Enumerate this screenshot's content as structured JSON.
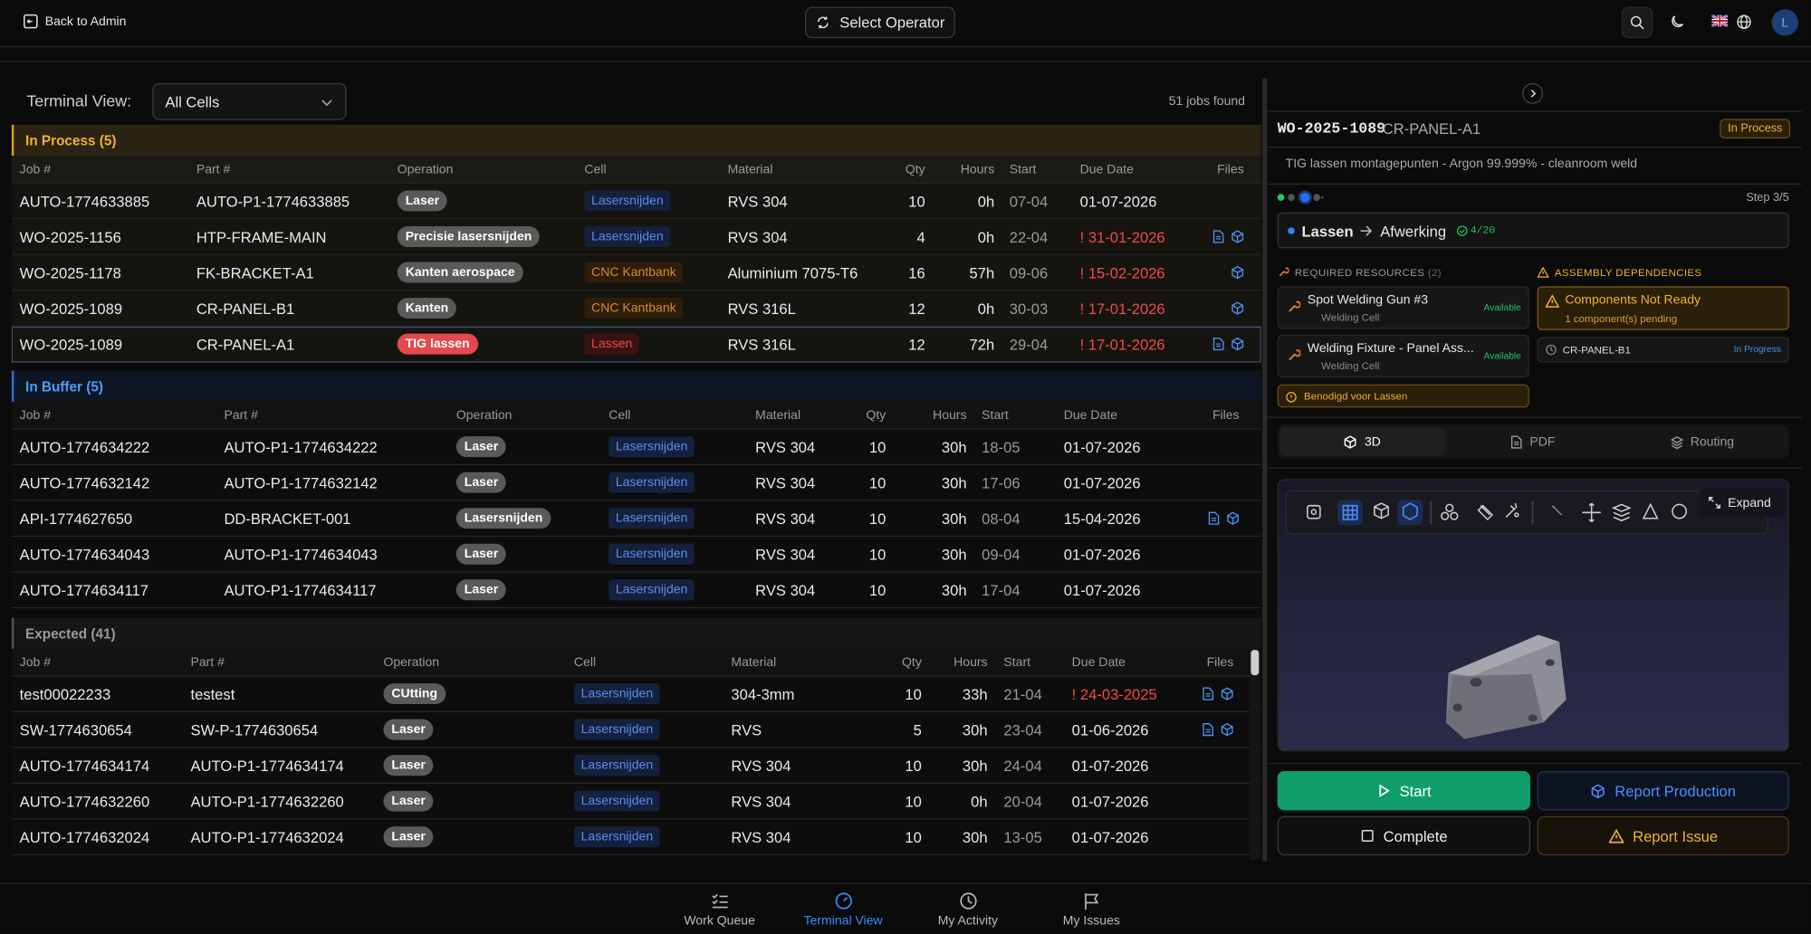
{
  "header": {
    "back": "Back to Admin",
    "select_operator": "Select Operator",
    "avatar": "L"
  },
  "toolbar": {
    "label": "Terminal View:",
    "cell_filter": "All Cells",
    "jobs_found": "51 jobs found"
  },
  "groups": [
    {
      "title": "In Process (5)",
      "tone": "amber",
      "columns": [
        "Job #",
        "Part #",
        "Operation",
        "Cell",
        "Material",
        "Qty",
        "Hours",
        "Start",
        "Due Date",
        "Files"
      ],
      "rows": [
        {
          "job": "AUTO-1774633885",
          "part": "AUTO-P1-1774633885",
          "operation": "Laser",
          "cell": "Lasersnijden",
          "cell_color": "blue",
          "material": "RVS 304",
          "qty": 10,
          "hours": "0h",
          "start": "07-04",
          "due": "01-07-2026",
          "files": []
        },
        {
          "job": "WO-2025-1156",
          "part": "HTP-FRAME-MAIN",
          "operation": "Precisie lasersnijden",
          "cell": "Lasersnijden",
          "cell_color": "blue",
          "material": "RVS 304",
          "qty": 4,
          "hours": "0h",
          "start": "22-04",
          "due": "! 31-01-2026",
          "overdue": true,
          "files": [
            "doc",
            "cube"
          ]
        },
        {
          "job": "WO-2025-1178",
          "part": "FK-BRACKET-A1",
          "operation": "Kanten aerospace",
          "cell": "CNC Kantbank",
          "cell_color": "orange",
          "material": "Aluminium 7075-T6",
          "qty": 16,
          "hours": "57h",
          "start": "09-06",
          "due": "! 15-02-2026",
          "overdue": true,
          "files": [
            "cube"
          ]
        },
        {
          "job": "WO-2025-1089",
          "part": "CR-PANEL-B1",
          "operation": "Kanten",
          "cell": "CNC Kantbank",
          "cell_color": "orange",
          "material": "RVS 316L",
          "qty": 12,
          "hours": "0h",
          "start": "30-03",
          "due": "! 17-01-2026",
          "overdue": true,
          "files": [
            "cube"
          ]
        },
        {
          "job": "WO-2025-1089",
          "part": "CR-PANEL-A1",
          "operation": "TIG lassen",
          "operation_color": "red",
          "cell": "Lassen",
          "cell_color": "red",
          "material": "RVS 316L",
          "qty": 12,
          "hours": "72h",
          "start": "29-04",
          "due": "! 17-01-2026",
          "overdue": true,
          "files": [
            "doc",
            "cube"
          ],
          "selected": true
        }
      ]
    },
    {
      "title": "In Buffer (5)",
      "tone": "blue",
      "columns": [
        "Job #",
        "Part #",
        "Operation",
        "Cell",
        "Material",
        "Qty",
        "Hours",
        "Start",
        "Due Date",
        "Files"
      ],
      "rows": [
        {
          "job": "AUTO-1774634222",
          "part": "AUTO-P1-1774634222",
          "operation": "Laser",
          "cell": "Lasersnijden",
          "cell_color": "blue",
          "material": "RVS 304",
          "qty": 10,
          "hours": "30h",
          "start": "18-05",
          "due": "01-07-2026",
          "files": []
        },
        {
          "job": "AUTO-1774632142",
          "part": "AUTO-P1-1774632142",
          "operation": "Laser",
          "cell": "Lasersnijden",
          "cell_color": "blue",
          "material": "RVS 304",
          "qty": 10,
          "hours": "30h",
          "start": "17-06",
          "due": "01-07-2026",
          "files": []
        },
        {
          "job": "API-1774627650",
          "part": "DD-BRACKET-001",
          "operation": "Lasersnijden",
          "cell": "Lasersnijden",
          "cell_color": "blue",
          "material": "RVS 304",
          "qty": 10,
          "hours": "30h",
          "start": "08-04",
          "due": "15-04-2026",
          "files": [
            "doc",
            "cube"
          ]
        },
        {
          "job": "AUTO-1774634043",
          "part": "AUTO-P1-1774634043",
          "operation": "Laser",
          "cell": "Lasersnijden",
          "cell_color": "blue",
          "material": "RVS 304",
          "qty": 10,
          "hours": "30h",
          "start": "09-04",
          "due": "01-07-2026",
          "files": []
        },
        {
          "job": "AUTO-1774634117",
          "part": "AUTO-P1-1774634117",
          "operation": "Laser",
          "cell": "Lasersnijden",
          "cell_color": "blue",
          "material": "RVS 304",
          "qty": 10,
          "hours": "30h",
          "start": "17-04",
          "due": "01-07-2026",
          "files": []
        }
      ]
    },
    {
      "title": "Expected (41)",
      "tone": "gray",
      "columns": [
        "Job #",
        "Part #",
        "Operation",
        "Cell",
        "Material",
        "Qty",
        "Hours",
        "Start",
        "Due Date",
        "Files"
      ],
      "rows": [
        {
          "job": "test00022233",
          "part": "testest",
          "operation": "CUtting",
          "cell": "Lasersnijden",
          "cell_color": "blue",
          "material": "304-3mm",
          "qty": 10,
          "hours": "33h",
          "start": "21-04",
          "due": "! 24-03-2025",
          "overdue": true,
          "files": [
            "doc",
            "cube"
          ]
        },
        {
          "job": "SW-1774630654",
          "part": "SW-P-1774630654",
          "operation": "Laser",
          "cell": "Lasersnijden",
          "cell_color": "blue",
          "material": "RVS",
          "qty": 5,
          "hours": "30h",
          "start": "23-04",
          "due": "01-06-2026",
          "files": [
            "doc",
            "cube"
          ]
        },
        {
          "job": "AUTO-1774634174",
          "part": "AUTO-P1-1774634174",
          "operation": "Laser",
          "cell": "Lasersnijden",
          "cell_color": "blue",
          "material": "RVS 304",
          "qty": 10,
          "hours": "30h",
          "start": "24-04",
          "due": "01-07-2026",
          "files": []
        },
        {
          "job": "AUTO-1774632260",
          "part": "AUTO-P1-1774632260",
          "operation": "Laser",
          "cell": "Lasersnijden",
          "cell_color": "blue",
          "material": "RVS 304",
          "qty": 10,
          "hours": "0h",
          "start": "20-04",
          "due": "01-07-2026",
          "files": []
        },
        {
          "job": "AUTO-1774632024",
          "part": "AUTO-P1-1774632024",
          "operation": "Laser",
          "cell": "Lasersnijden",
          "cell_color": "blue",
          "material": "RVS 304",
          "qty": 10,
          "hours": "30h",
          "start": "13-05",
          "due": "01-07-2026",
          "files": []
        }
      ]
    }
  ],
  "detail": {
    "wo_number": "WO-2025-1089",
    "part": "CR-PANEL-A1",
    "status": "In Process",
    "description": "TIG lassen montagepunten - Argon 99.999% - cleanroom weld",
    "step": "Step 3/5",
    "current_operation": "Lassen",
    "next_operation": "Afwerking",
    "progress": "4/20"
  },
  "resources": {
    "title": "REQUIRED RESOURCES",
    "count": "(2)",
    "items": [
      {
        "name": "Spot Welding Gun #3",
        "location": "Welding Cell",
        "status": "Available"
      },
      {
        "name": "Welding Fixture - Panel Ass...",
        "location": "Welding Cell",
        "status": "Available"
      }
    ],
    "note": "Benodigd voor Lassen"
  },
  "dependencies": {
    "title": "ASSEMBLY DEPENDENCIES",
    "warning": "Components Not Ready",
    "pending": "1 component(s) pending",
    "items": [
      {
        "part": "CR-PANEL-B1",
        "status": "In Progress"
      }
    ]
  },
  "viewer": {
    "tabs": [
      "3D",
      "PDF",
      "Routing"
    ],
    "expand": "Expand"
  },
  "actions": {
    "start": "Start",
    "report_production": "Report Production",
    "complete": "Complete",
    "report_issue": "Report Issue"
  },
  "nav": {
    "items": [
      "Work Queue",
      "Terminal View",
      "My Activity",
      "My Issues"
    ],
    "active": 1
  }
}
